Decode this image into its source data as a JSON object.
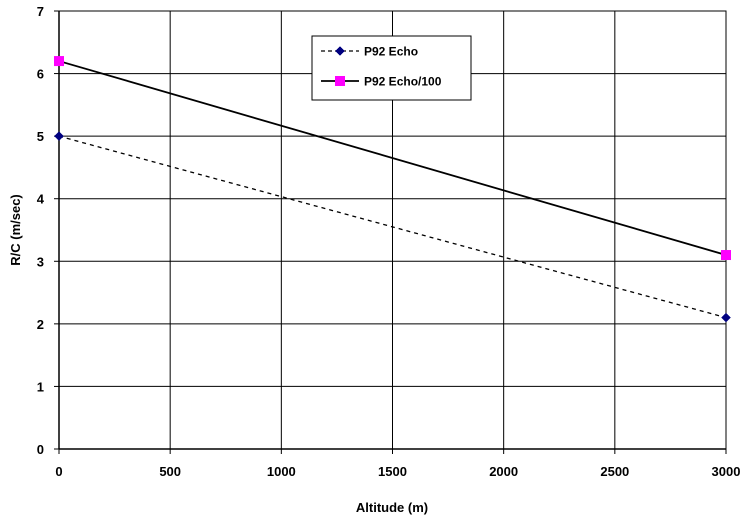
{
  "chart_data": {
    "type": "line",
    "title": "",
    "xlabel": "Altitude (m)",
    "ylabel": "R/C (m/sec)",
    "xlim": [
      0,
      3000
    ],
    "ylim": [
      0,
      7
    ],
    "x_ticks": [
      "0",
      "500",
      "1000",
      "1500",
      "2000",
      "2500",
      "3000"
    ],
    "y_ticks": [
      "0",
      "1",
      "2",
      "3",
      "4",
      "5",
      "6",
      "7"
    ],
    "grid": true,
    "legend_position": "top-right",
    "series": [
      {
        "name": "P92 Echo",
        "x": [
          0,
          3000
        ],
        "y": [
          5.0,
          2.1
        ],
        "color": "#000080",
        "line_style": "dashed",
        "marker": "diamond"
      },
      {
        "name": "P92 Echo/100",
        "x": [
          0,
          3000
        ],
        "y": [
          6.2,
          3.1
        ],
        "color": "#ff00ff",
        "line_style": "solid",
        "marker": "square"
      }
    ]
  }
}
